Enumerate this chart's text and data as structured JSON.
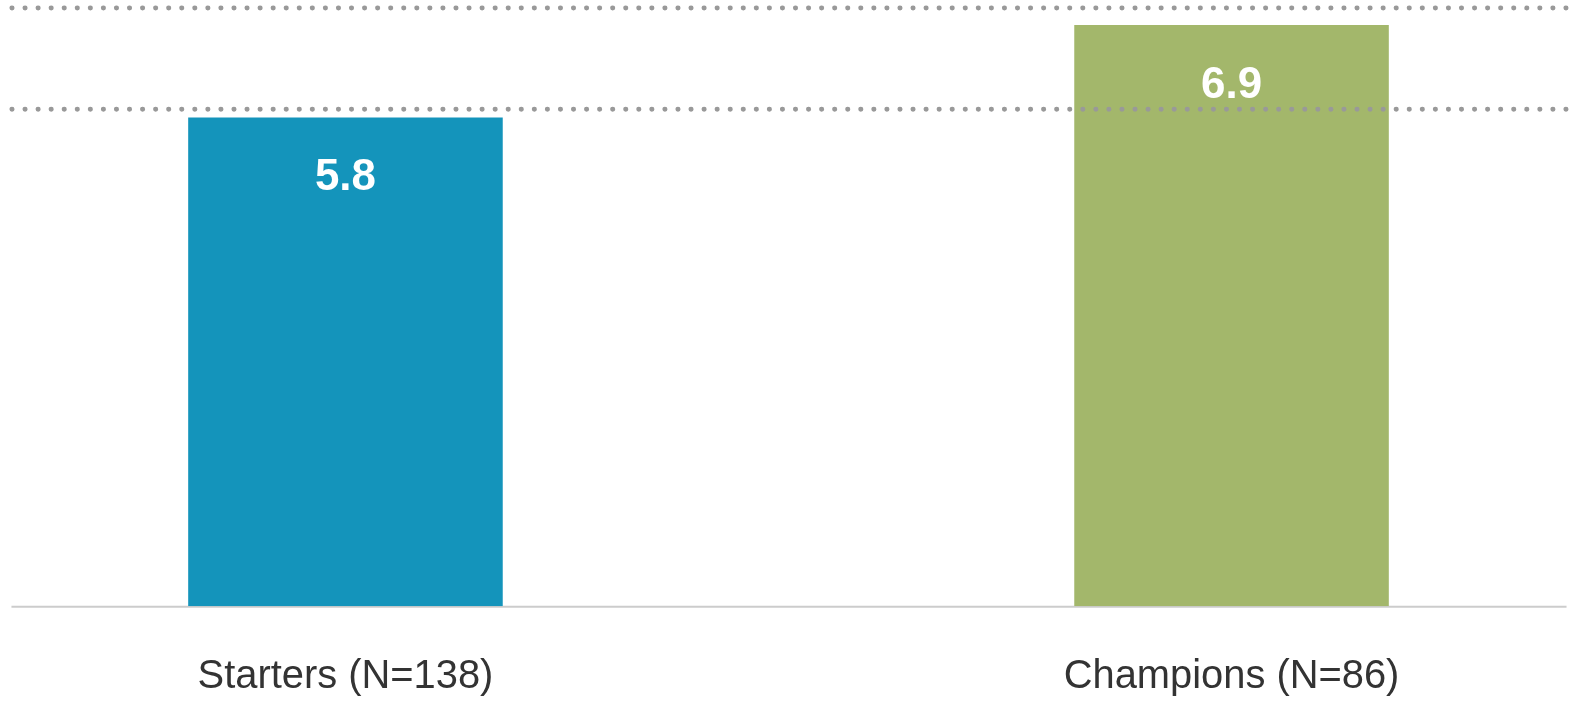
{
  "chart_data": {
    "type": "bar",
    "categories": [
      "Starters (N=138)",
      "Champions (N=86)"
    ],
    "values": [
      5.8,
      6.9
    ],
    "colors": [
      "#1494bb",
      "#a3b76b"
    ],
    "ref_lines": [
      {
        "axis": "y",
        "value": 5.9,
        "color": "#999999",
        "line_style": "dotted"
      },
      {
        "axis": "y",
        "value": 7.1,
        "color": "#999999",
        "line_style": "dotted"
      }
    ],
    "data_labels": true,
    "tick_labels": "x"
  }
}
